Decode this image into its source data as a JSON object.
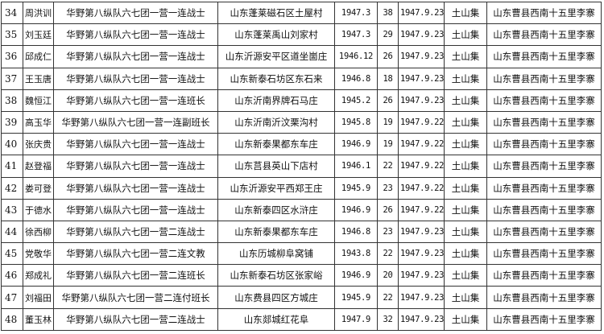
{
  "rows": [
    {
      "no": "34",
      "name": "周洪训",
      "unit": "华野第八纵队六七团一营一连战士",
      "hometown": "山东蓬莱磁石区土屋村",
      "enlisted": "1947.3",
      "age": "38",
      "died": "1947.9.23",
      "place": "土山集",
      "burial": "山东曹县西南十五里李寨"
    },
    {
      "no": "35",
      "name": "刘玉廷",
      "unit": "华野第八纵队六七团一营一连战士",
      "hometown": "山东蓬莱禹山刘家村",
      "enlisted": "1947.3",
      "age": "29",
      "died": "1947.9.23",
      "place": "土山集",
      "burial": "山东曹县西南十五里李寨"
    },
    {
      "no": "36",
      "name": "邱成仁",
      "unit": "华野第八纵队六七团一营一连战士",
      "hometown": "山东沂源安平区道坐崮庄",
      "enlisted": "1946.12",
      "age": "26",
      "died": "1947.9.23",
      "place": "土山集",
      "burial": "山东曹县西南十五里李寨"
    },
    {
      "no": "37",
      "name": "王玉唐",
      "unit": "华野第八纵队六七团一营一连战士",
      "hometown": "山东新泰石坊区东石来",
      "enlisted": "1946.8",
      "age": "18",
      "died": "1947.9.23",
      "place": "土山集",
      "burial": "山东曹县西南十五里李寨"
    },
    {
      "no": "38",
      "name": "魏恒江",
      "unit": "华野第八纵队六七团一营一连班长",
      "hometown": "山东沂南界牌石马庄",
      "enlisted": "1945.2",
      "age": "26",
      "died": "1947.9.23",
      "place": "土山集",
      "burial": "山东曹县西南十五里李寨"
    },
    {
      "no": "39",
      "name": "高玉华",
      "unit": "华野第八纵队六七团一营一连副班长",
      "hometown": "山东沂南沂汶栗沟村",
      "enlisted": "1945.8",
      "age": "19",
      "died": "1947.9.22",
      "place": "土山集",
      "burial": "山东曹县西南十五里李寨"
    },
    {
      "no": "40",
      "name": "张庆贵",
      "unit": "华野第八纵队六七团一营一连战士",
      "hometown": "山东新泰果都东车庄",
      "enlisted": "1946.9",
      "age": "19",
      "died": "1947.9.22",
      "place": "土山集",
      "burial": "山东曹县西南十五里李寨"
    },
    {
      "no": "41",
      "name": "赵登福",
      "unit": "华野第八纵队六七团一营一连战士",
      "hometown": "山东莒县英山下店村",
      "enlisted": "1946.1",
      "age": "22",
      "died": "1947.9.22",
      "place": "土山集",
      "burial": "山东曹县西南十五里李寨"
    },
    {
      "no": "42",
      "name": "娄可登",
      "unit": "华野第八纵队六七团一营一连战士",
      "hometown": "山东沂源安平西郑王庄",
      "enlisted": "1945.9",
      "age": "23",
      "died": "1947.9.22",
      "place": "土山集",
      "burial": "山东曹县西南十五里李寨"
    },
    {
      "no": "43",
      "name": "于德水",
      "unit": "华野第八纵队六七团一营一连战士",
      "hometown": "山东新泰四区水浒庄",
      "enlisted": "1946.9",
      "age": "26",
      "died": "1947.9.22",
      "place": "土山集",
      "burial": "山东曹县西南十五里李寨"
    },
    {
      "no": "44",
      "name": "徐西柳",
      "unit": "华野第八纵队六七团一营二连战士",
      "hometown": "山东新泰果都东车庄",
      "enlisted": "1946.8",
      "age": "23",
      "died": "1947.9.23",
      "place": "土山集",
      "burial": "山东曹县西南十五里李寨"
    },
    {
      "no": "45",
      "name": "党敬华",
      "unit": "华野第八纵队六七团一营二连文教",
      "hometown": "山东历城柳阜窝铺",
      "enlisted": "1943.8",
      "age": "22",
      "died": "1947.9.23",
      "place": "土山集",
      "burial": "山东曹县西南十五里李寨"
    },
    {
      "no": "46",
      "name": "郑成礼",
      "unit": "华野第八纵队六七团一营二连班长",
      "hometown": "山东新泰石坊区张家峪",
      "enlisted": "1946.9",
      "age": "20",
      "died": "1947.9.23",
      "place": "土山集",
      "burial": "山东曹县西南十五里李寨"
    },
    {
      "no": "47",
      "name": "刘福田",
      "unit": "华野第八纵队六七团一营二连付班长",
      "hometown": "山东费县四区方城庄",
      "enlisted": "1945.9",
      "age": "22",
      "died": "1947.9.23",
      "place": "土山集",
      "burial": "山东曹县西南十五里李寨"
    },
    {
      "no": "48",
      "name": "董玉林",
      "unit": "华野第八纵队六七团一营二连战士",
      "hometown": "山东郯城红花阜",
      "enlisted": "1947.9",
      "age": "32",
      "died": "1947.9.23",
      "place": "土山集",
      "burial": "山东曹县西南十五里李寨"
    }
  ]
}
